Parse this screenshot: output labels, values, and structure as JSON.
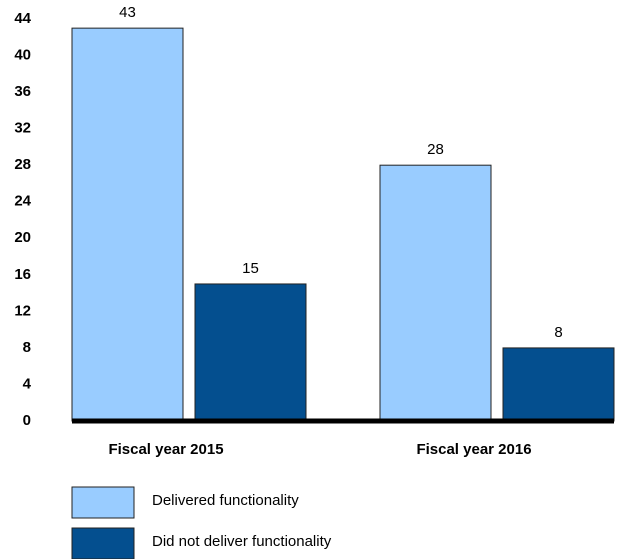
{
  "chart_data": {
    "type": "bar",
    "categories": [
      "Fiscal year 2015",
      "Fiscal year 2016"
    ],
    "series": [
      {
        "name": "Delivered functionality",
        "color": "#99ccff",
        "values": [
          43,
          28
        ]
      },
      {
        "name": "Did not deliver functionality",
        "color": "#044f8f",
        "values": [
          15,
          8
        ]
      }
    ],
    "ylim": [
      0,
      44
    ],
    "yticks": [
      0,
      4,
      8,
      12,
      16,
      20,
      24,
      28,
      32,
      36,
      40,
      44
    ],
    "grid": false
  }
}
